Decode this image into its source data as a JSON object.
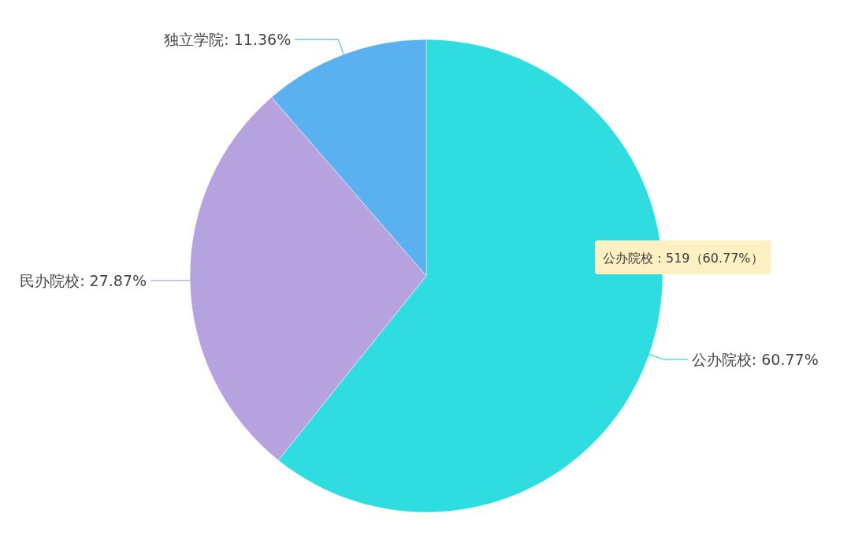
{
  "chart_data": {
    "type": "pie",
    "categories": [
      "公办院校",
      "民办院校",
      "独立学院"
    ],
    "values": [
      60.77,
      27.87,
      11.36
    ],
    "colors": [
      "#2fdde0",
      "#b6a2de",
      "#5ab1ef"
    ],
    "value_labels": [
      "60.77%",
      "27.87%",
      "11.36%"
    ],
    "annotations": [
      "公办院校：519（60.77%）"
    ]
  }
}
